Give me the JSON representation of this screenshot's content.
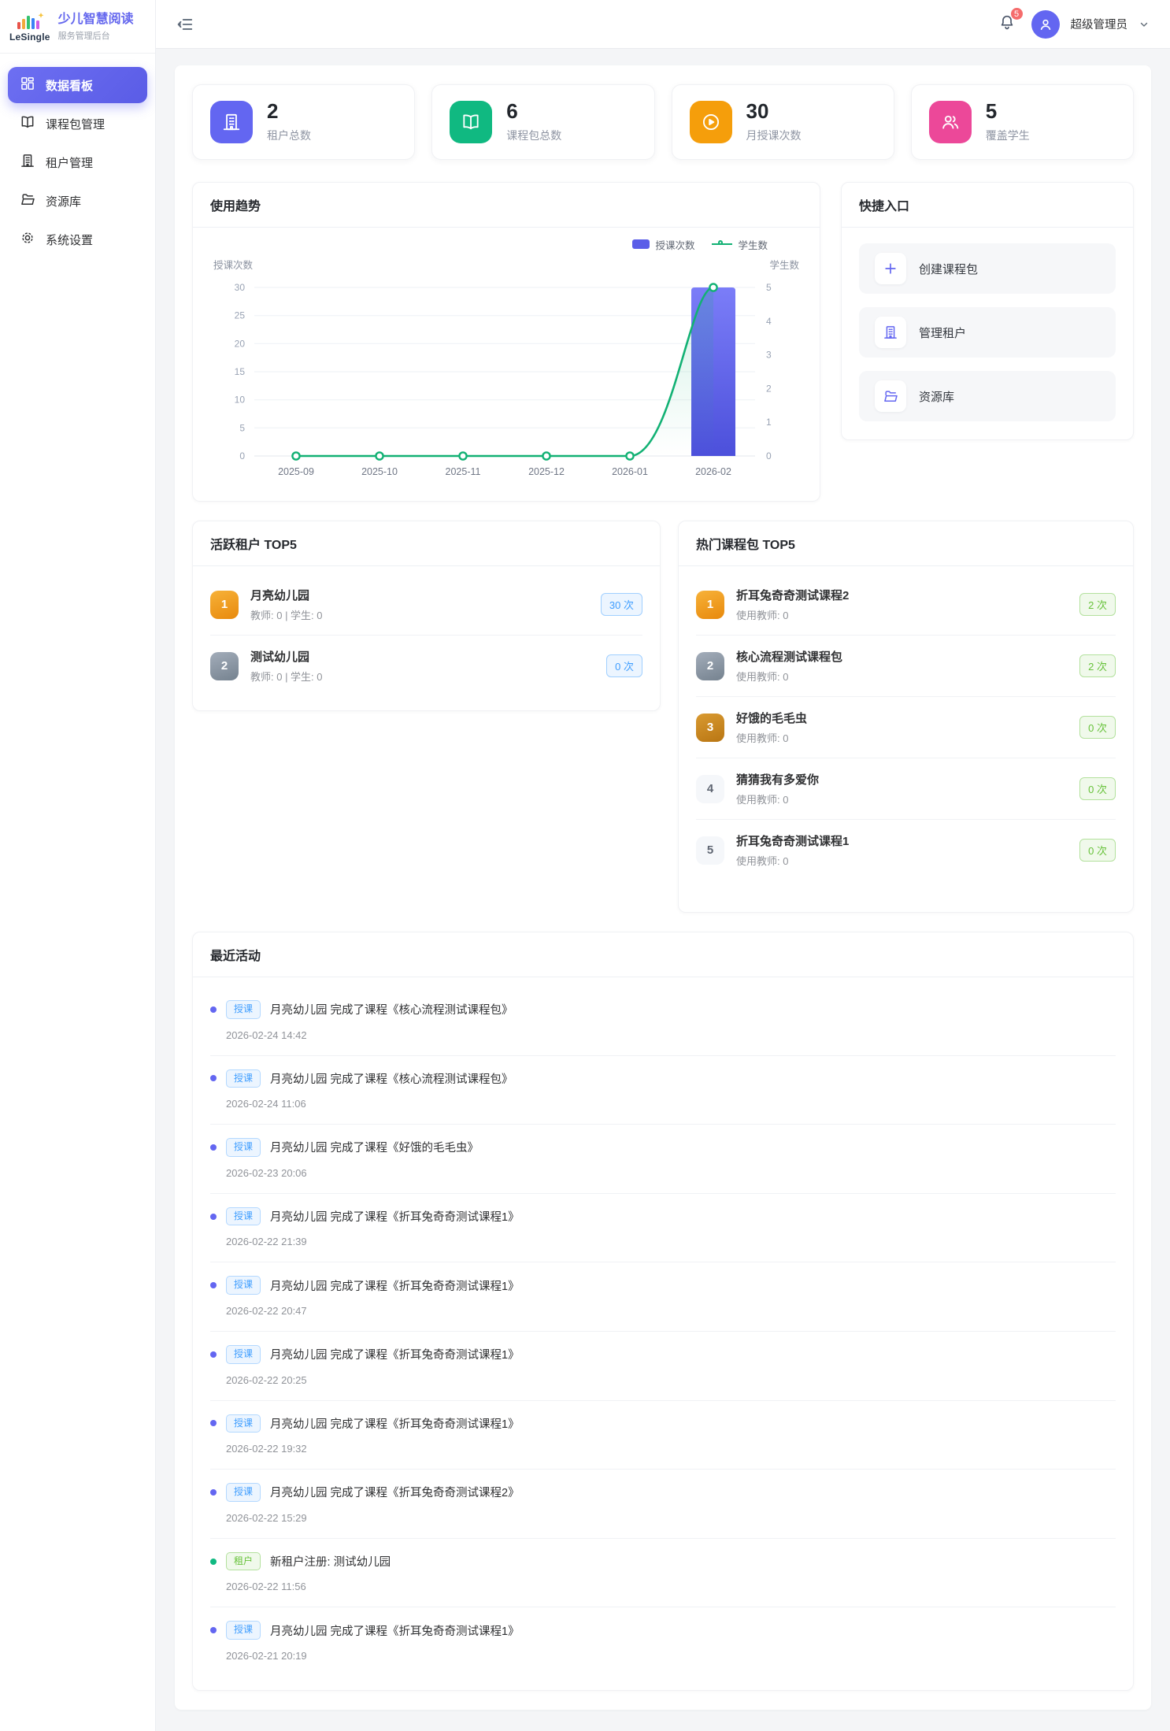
{
  "colors": {
    "primary": "#6366f1",
    "bar": "#5b5ee8",
    "line": "#12b174",
    "chip_blue": "#409eff",
    "chip_green": "#67c23a",
    "badge_red": "#f56c6c",
    "stat_purple": "#6366f1",
    "stat_green": "#10b981",
    "stat_orange": "#f59e0b",
    "stat_pink": "#ec4899"
  },
  "sidebar": {
    "logo_text": "LeSingle",
    "app_title": "少儿智慧阅读",
    "app_subtitle": "服务管理后台",
    "items": [
      {
        "label": "数据看板",
        "icon": "dashboard-icon",
        "active": true
      },
      {
        "label": "课程包管理",
        "icon": "book-icon",
        "active": false
      },
      {
        "label": "租户管理",
        "icon": "building-icon",
        "active": false
      },
      {
        "label": "资源库",
        "icon": "folder-icon",
        "active": false
      },
      {
        "label": "系统设置",
        "icon": "gear-icon",
        "active": false
      }
    ]
  },
  "header": {
    "notification_count": "5",
    "username": "超级管理员"
  },
  "stats": [
    {
      "value": "2",
      "label": "租户总数",
      "icon": "building-icon"
    },
    {
      "value": "6",
      "label": "课程包总数",
      "icon": "book-icon"
    },
    {
      "value": "30",
      "label": "月授课次数",
      "icon": "play-circle-icon"
    },
    {
      "value": "5",
      "label": "覆盖学生",
      "icon": "users-icon"
    }
  ],
  "chart_data": {
    "type": "bar+line",
    "title": "使用趋势",
    "categories": [
      "2025-09",
      "2025-10",
      "2025-11",
      "2025-12",
      "2026-01",
      "2026-02"
    ],
    "series": [
      {
        "name": "授课次数",
        "type": "bar",
        "axis": "left",
        "color": "#5b5ee8",
        "values": [
          0,
          0,
          0,
          0,
          0,
          30
        ]
      },
      {
        "name": "学生数",
        "type": "line",
        "axis": "right",
        "color": "#12b174",
        "values": [
          0,
          0,
          0,
          0,
          0,
          5
        ]
      }
    ],
    "left_axis": {
      "label": "授课次数",
      "min": 0,
      "max": 30,
      "ticks": [
        0,
        5,
        10,
        15,
        20,
        25,
        30
      ]
    },
    "right_axis": {
      "label": "学生数",
      "min": 0,
      "max": 5,
      "ticks": [
        0,
        1,
        2,
        3,
        4,
        5
      ]
    },
    "grid": true,
    "legend_position": "top-right"
  },
  "quick": {
    "title": "快捷入口",
    "items": [
      {
        "label": "创建课程包",
        "icon": "plus-icon"
      },
      {
        "label": "管理租户",
        "icon": "building-icon"
      },
      {
        "label": "资源库",
        "icon": "folder-icon"
      }
    ]
  },
  "top_tenants": {
    "title": "活跃租户 TOP5",
    "items": [
      {
        "rank": "1",
        "name": "月亮幼儿园",
        "meta": "教师: 0 | 学生: 0",
        "count": "30 次"
      },
      {
        "rank": "2",
        "name": "测试幼儿园",
        "meta": "教师: 0 | 学生: 0",
        "count": "0 次"
      }
    ]
  },
  "top_courses": {
    "title": "热门课程包 TOP5",
    "items": [
      {
        "rank": "1",
        "name": "折耳兔奇奇测试课程2",
        "meta": "使用教师: 0",
        "count": "2 次"
      },
      {
        "rank": "2",
        "name": "核心流程测试课程包",
        "meta": "使用教师: 0",
        "count": "2 次"
      },
      {
        "rank": "3",
        "name": "好饿的毛毛虫",
        "meta": "使用教师: 0",
        "count": "0 次"
      },
      {
        "rank": "4",
        "name": "猜猜我有多爱你",
        "meta": "使用教师: 0",
        "count": "0 次"
      },
      {
        "rank": "5",
        "name": "折耳兔奇奇测试课程1",
        "meta": "使用教师: 0",
        "count": "0 次"
      }
    ]
  },
  "activities": {
    "title": "最近活动",
    "items": [
      {
        "type": "teach",
        "tag": "授课",
        "text": "月亮幼儿园 完成了课程《核心流程测试课程包》",
        "time": "2026-02-24 14:42"
      },
      {
        "type": "teach",
        "tag": "授课",
        "text": "月亮幼儿园 完成了课程《核心流程测试课程包》",
        "time": "2026-02-24 11:06"
      },
      {
        "type": "teach",
        "tag": "授课",
        "text": "月亮幼儿园 完成了课程《好饿的毛毛虫》",
        "time": "2026-02-23 20:06"
      },
      {
        "type": "teach",
        "tag": "授课",
        "text": "月亮幼儿园 完成了课程《折耳兔奇奇测试课程1》",
        "time": "2026-02-22 21:39"
      },
      {
        "type": "teach",
        "tag": "授课",
        "text": "月亮幼儿园 完成了课程《折耳兔奇奇测试课程1》",
        "time": "2026-02-22 20:47"
      },
      {
        "type": "teach",
        "tag": "授课",
        "text": "月亮幼儿园 完成了课程《折耳兔奇奇测试课程1》",
        "time": "2026-02-22 20:25"
      },
      {
        "type": "teach",
        "tag": "授课",
        "text": "月亮幼儿园 完成了课程《折耳兔奇奇测试课程1》",
        "time": "2026-02-22 19:32"
      },
      {
        "type": "teach",
        "tag": "授课",
        "text": "月亮幼儿园 完成了课程《折耳兔奇奇测试课程2》",
        "time": "2026-02-22 15:29"
      },
      {
        "type": "tenant",
        "tag": "租户",
        "text": "新租户注册: 测试幼儿园",
        "time": "2026-02-22 11:56"
      },
      {
        "type": "teach",
        "tag": "授课",
        "text": "月亮幼儿园 完成了课程《折耳兔奇奇测试课程1》",
        "time": "2026-02-21 20:19"
      }
    ]
  }
}
